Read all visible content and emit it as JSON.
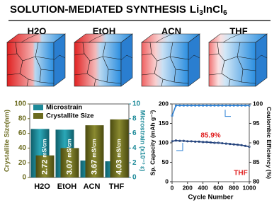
{
  "header": {
    "title": "SOLUTION-MEDIATED SYNTHESIS",
    "formula": [
      "Li",
      "3",
      "InCl",
      "6"
    ]
  },
  "cubes": [
    {
      "label": "H2O"
    },
    {
      "label": "EtOH"
    },
    {
      "label": "ACN"
    },
    {
      "label": "THF"
    }
  ],
  "chart_data": [
    {
      "type": "bar",
      "categories": [
        "H2O",
        "EtOH",
        "ACN",
        "THF"
      ],
      "series": [
        {
          "name": "Microstrain",
          "color": "#1d8a99",
          "axis": "y2",
          "values": [
            6.6,
            6.5,
            2.3,
            2.2
          ]
        },
        {
          "name": "Crystallite Size",
          "color": "#6b6b1f",
          "values": [
            30,
            40,
            71,
            79
          ]
        }
      ],
      "annotations": [
        {
          "value": "2.72",
          "unit": "mS/cm"
        },
        {
          "value": "3.07",
          "unit": "mS/cm"
        },
        {
          "value": "3.67",
          "unit": "mS/cm"
        },
        {
          "value": "4.03",
          "unit": "mS/cm"
        }
      ],
      "ylabel": "Crystallite Size(nm)",
      "y2label": "Microstrain (x10⁻³ ε)",
      "ylim": [
        0,
        100
      ],
      "yticks": [
        0,
        20,
        40,
        60,
        80,
        100
      ],
      "y2lim": [
        0,
        10
      ],
      "y2ticks": [
        0,
        2,
        4,
        6,
        8,
        10
      ],
      "legend": "top-left"
    },
    {
      "type": "line",
      "x": [
        1,
        50,
        100,
        150,
        200,
        250,
        300,
        350,
        400,
        450,
        500,
        550,
        600,
        650,
        700,
        750,
        800,
        850,
        900,
        950,
        1000
      ],
      "series": [
        {
          "name": "Sp. Capacity",
          "color": "#1f3f7a",
          "values": [
            104,
            106,
            105,
            105,
            104,
            104,
            103,
            103,
            102,
            102,
            101,
            100,
            100,
            99,
            98,
            97,
            96,
            95,
            94,
            92,
            90
          ]
        },
        {
          "name": "Coulombic Efficiency",
          "color": "#2a7fd4",
          "axis": "y2",
          "values": [
            97,
            99.6,
            99.6,
            99.6,
            99.6,
            99.6,
            99.6,
            99.6,
            99.6,
            99.6,
            99.6,
            99.6,
            99.6,
            99.6,
            99.6,
            99.6,
            99.6,
            99.6,
            99.6,
            99.6,
            99.6
          ]
        }
      ],
      "annotations": [
        "85.9%",
        "THF"
      ],
      "xlabel": "Cycle Number",
      "ylabel": "Sp. Capacity (mAh g⁻¹)",
      "y2label": "Coulombic Efficiency (%)",
      "xlim": [
        0,
        1000
      ],
      "xticks": [
        0,
        200,
        400,
        600,
        800,
        1000
      ],
      "ylim": [
        0,
        200
      ],
      "yticks": [
        0,
        50,
        100,
        150,
        200
      ],
      "y2lim": [
        80,
        100
      ],
      "y2ticks": [
        80,
        85,
        90,
        95,
        100
      ]
    }
  ]
}
